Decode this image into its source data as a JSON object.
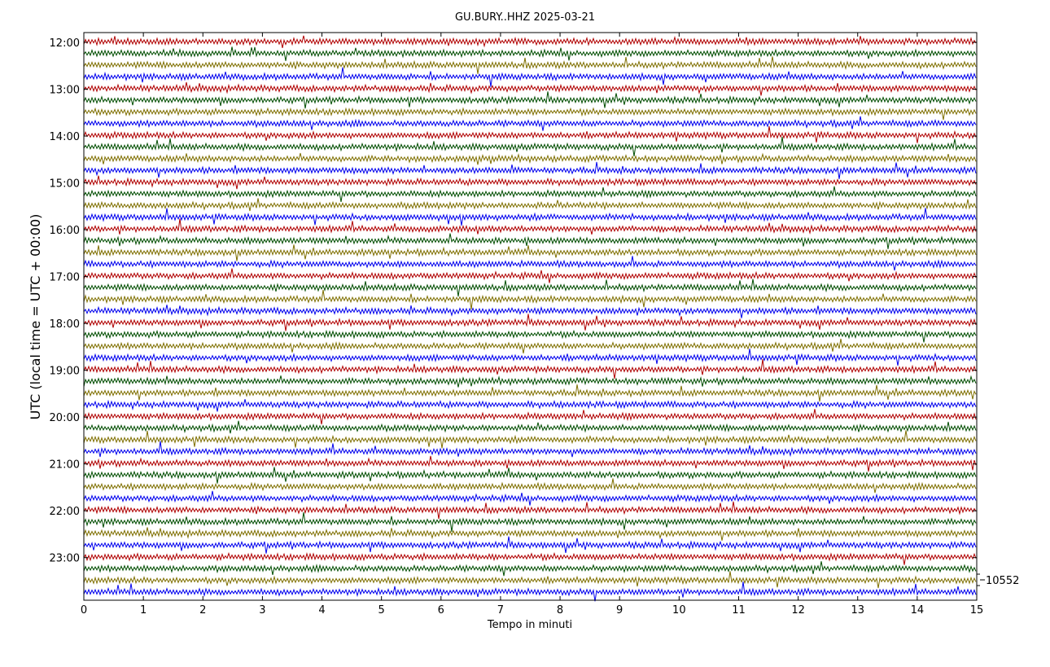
{
  "chart_data": {
    "type": "line",
    "title": "GU.BURY..HHZ 2025-03-21",
    "xlabel": "Tempo in minuti",
    "ylabel": "UTC (local time = UTC + 00:00)",
    "xlim": [
      0,
      15
    ],
    "x_ticks": [
      "0",
      "1",
      "2",
      "3",
      "4",
      "5",
      "6",
      "7",
      "8",
      "9",
      "10",
      "11",
      "12",
      "13",
      "14",
      "15"
    ],
    "y_ticks": [
      "12:00",
      "13:00",
      "14:00",
      "15:00",
      "16:00",
      "17:00",
      "18:00",
      "19:00",
      "20:00",
      "21:00",
      "22:00",
      "23:00"
    ],
    "trace_count": 48,
    "trace_interval_minutes": 15,
    "trace_colors": [
      "#b00000",
      "#004d00",
      "#7f6f00",
      "#0000ee"
    ],
    "scale_label": "10552",
    "grid": false
  }
}
